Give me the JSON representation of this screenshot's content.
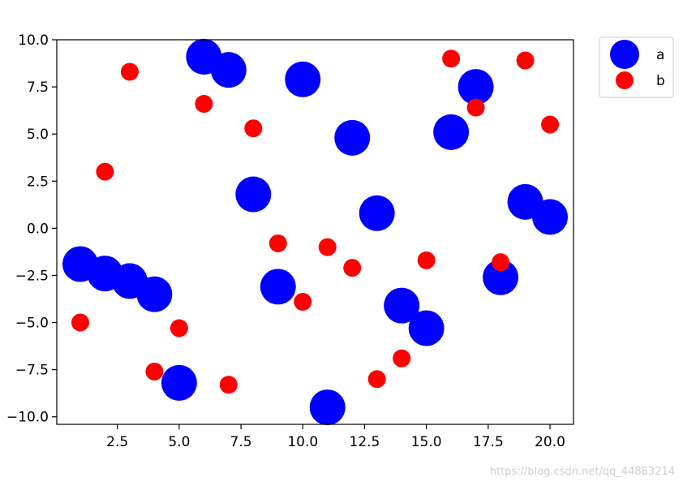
{
  "chart_data": {
    "type": "scatter",
    "title": "",
    "xlabel": "",
    "ylabel": "",
    "xlim": [
      0.05,
      20.95
    ],
    "ylim": [
      -10.4,
      10.0
    ],
    "xticks": [
      2.5,
      5.0,
      7.5,
      10.0,
      12.5,
      15.0,
      17.5,
      20.0
    ],
    "xtick_labels": [
      "2.5",
      "5.0",
      "7.5",
      "10.0",
      "12.5",
      "15.0",
      "17.5",
      "20.0"
    ],
    "yticks": [
      10.0,
      7.5,
      5.0,
      2.5,
      0.0,
      -2.5,
      -5.0,
      -7.5,
      -10.0
    ],
    "ytick_labels": [
      "10.0",
      "7.5",
      "5.0",
      "2.5",
      "0.0",
      "−2.5",
      "−5.0",
      "−7.5",
      "−10.0"
    ],
    "grid": false,
    "legend_placement": "outside-top-right",
    "series": [
      {
        "name": "a",
        "color": "#0000ff",
        "marker_size": "large",
        "x": [
          1,
          2,
          3,
          4,
          5,
          6,
          7,
          8,
          9,
          10,
          11,
          12,
          13,
          14,
          15,
          16,
          17,
          18,
          19,
          20
        ],
        "y": [
          -1.9,
          -2.4,
          -2.8,
          -3.5,
          -8.2,
          9.1,
          8.4,
          1.8,
          -3.1,
          7.9,
          -9.5,
          4.8,
          0.8,
          -4.1,
          -5.3,
          5.1,
          7.5,
          -2.6,
          1.4,
          0.6
        ]
      },
      {
        "name": "b",
        "color": "#ff0000",
        "marker_size": "small",
        "x": [
          1,
          2,
          3,
          4,
          5,
          6,
          7,
          8,
          9,
          10,
          11,
          12,
          13,
          14,
          15,
          16,
          17,
          18,
          19,
          20
        ],
        "y": [
          -5.0,
          3.0,
          8.3,
          -7.6,
          -5.3,
          6.6,
          -8.3,
          5.3,
          -0.8,
          -3.9,
          -1.0,
          -2.1,
          -8.0,
          -6.9,
          -1.7,
          9.0,
          6.4,
          -1.8,
          8.9,
          5.5
        ]
      }
    ]
  },
  "legend": {
    "items": [
      {
        "label": "a",
        "color": "#0000ff"
      },
      {
        "label": "b",
        "color": "#ff0000"
      }
    ]
  },
  "watermark": "https://blog.csdn.net/qq_44883214"
}
